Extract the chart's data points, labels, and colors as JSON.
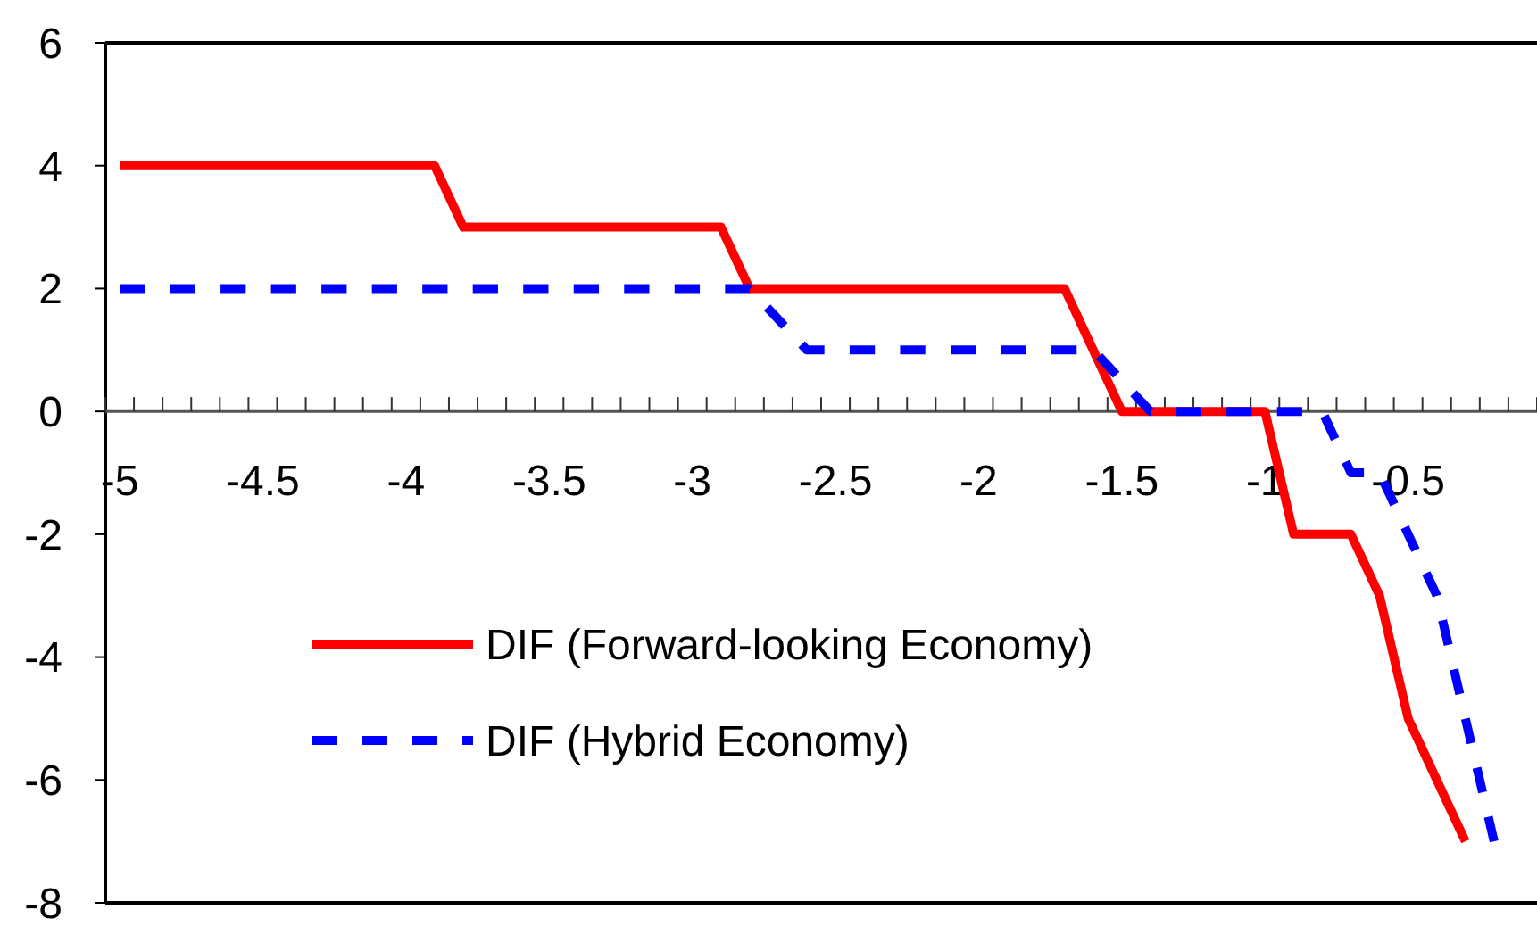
{
  "chart_data": {
    "type": "line",
    "categories": [
      "-5",
      null,
      null,
      null,
      null,
      "-4.5",
      null,
      null,
      null,
      null,
      "-4",
      null,
      null,
      null,
      null,
      "-3.5",
      null,
      null,
      null,
      null,
      "-3",
      null,
      null,
      null,
      null,
      "-2.5",
      null,
      null,
      null,
      null,
      "-2",
      null,
      null,
      null,
      null,
      "-1.5",
      null,
      null,
      null,
      null,
      "-1",
      null,
      null,
      null,
      null,
      "-0.5",
      null,
      null,
      null,
      null
    ],
    "series": [
      {
        "name": "DIF (Forward-looking Economy)",
        "color": "#ff0000",
        "line_style": "solid",
        "values": [
          4,
          4,
          4,
          4,
          4,
          4,
          4,
          4,
          4,
          4,
          4,
          4,
          3,
          3,
          3,
          3,
          3,
          3,
          3,
          3,
          3,
          3,
          2,
          2,
          2,
          2,
          2,
          2,
          2,
          2,
          2,
          2,
          2,
          2,
          1,
          0,
          0,
          0,
          0,
          0,
          0,
          -2,
          -2,
          -2,
          -3,
          -5,
          -6,
          -7,
          null,
          null
        ]
      },
      {
        "name": "DIF (Hybrid Economy)",
        "color": "#0000ff",
        "line_style": "dashed",
        "values": [
          2,
          2,
          2,
          2,
          2,
          2,
          2,
          2,
          2,
          2,
          2,
          2,
          2,
          2,
          2,
          2,
          2,
          2,
          2,
          2,
          2,
          2,
          2,
          1.5,
          1,
          1,
          1,
          1,
          1,
          1,
          1,
          1,
          1,
          1,
          1,
          0.5,
          0,
          0,
          0,
          0,
          0,
          0,
          0,
          -1,
          -1,
          -2,
          -3,
          -5,
          -7,
          null
        ]
      }
    ],
    "ylim": [
      -8,
      6
    ],
    "yticks": [
      -8,
      -6,
      -4,
      -2,
      0,
      2,
      4,
      6
    ],
    "grid": false,
    "legend": "bottom",
    "marker": "none"
  }
}
